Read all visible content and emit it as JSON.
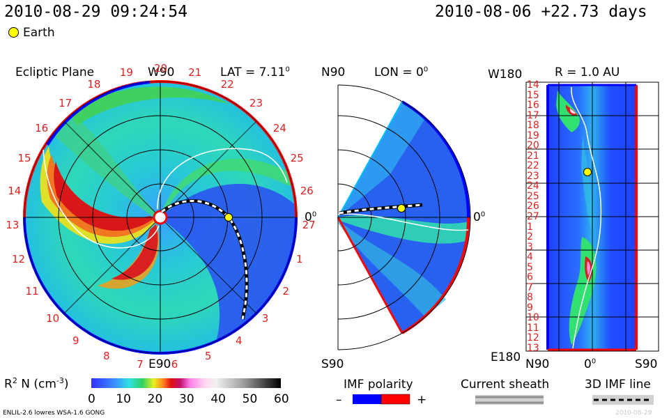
{
  "header": {
    "timestamp": "2010-08-29 09:24:54",
    "reference": "2010-08-06 +22.73 days",
    "legend_earth": "Earth"
  },
  "ecliptic": {
    "title": "Ecliptic Plane",
    "top_label": "W90",
    "bottom_label": "E90",
    "lat_label": "LAT = 7.11",
    "lat_deg": "0",
    "right_label": "0",
    "right_deg": "0",
    "carrington": [
      "20",
      "21",
      "22",
      "23",
      "24",
      "25",
      "26",
      "27",
      "1",
      "2",
      "3",
      "4",
      "5",
      "6",
      "7",
      "8",
      "9",
      "10",
      "11",
      "12",
      "13",
      "14",
      "15",
      "16",
      "17",
      "18",
      "19"
    ]
  },
  "meridional": {
    "top_label": "N90",
    "lon_label": "LON = 0",
    "lon_deg": "0",
    "bottom_label": "S90",
    "right_label": "0",
    "right_deg": "0"
  },
  "radial": {
    "title": "R = 1.0 AU",
    "top_left": "W180",
    "bottom_left": "E180",
    "x_left": "N90",
    "x_mid": "0",
    "x_mid_deg": "0",
    "x_right": "S90",
    "carrington": [
      "14",
      "15",
      "16",
      "17",
      "18",
      "19",
      "20",
      "21",
      "22",
      "23",
      "24",
      "25",
      "26",
      "27",
      "1",
      "2",
      "3",
      "4",
      "5",
      "6",
      "7",
      "8",
      "9",
      "10",
      "11",
      "12",
      "13"
    ]
  },
  "colorbar": {
    "label": "R",
    "label_sup": "2",
    "label_rest": " N (cm",
    "label_exp": "-3",
    "label_close": ")",
    "ticks": [
      "0",
      "10",
      "20",
      "30",
      "40",
      "50",
      "60"
    ],
    "range": [
      0,
      60
    ]
  },
  "legends": {
    "imf_polarity": "IMF polarity",
    "minus": "–",
    "plus": "+",
    "current_sheath": "Current sheath",
    "imf_line": "3D IMF line"
  },
  "footer": {
    "model": "ENLIL-2.6 lowres WSA-1.6 GONG",
    "watermark": "2010-08-29"
  },
  "colors": {
    "negative_polarity": "#0000ff",
    "positive_polarity": "#ff0000",
    "earth": "#ffff00",
    "tick_label": "#e02020"
  }
}
